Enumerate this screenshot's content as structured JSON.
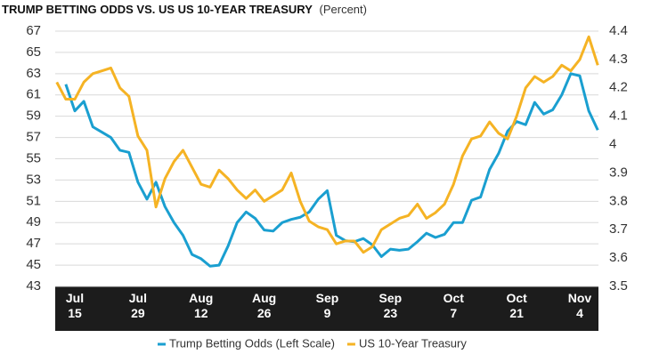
{
  "chart_data": {
    "type": "line",
    "title": "TRUMP BETTING ODDS VS. US US 10-YEAR TREASURY",
    "subtitle": "(Percent)",
    "categories": [
      null,
      null,
      "Jul 15",
      null,
      null,
      null,
      null,
      null,
      null,
      "Jul 29",
      null,
      null,
      null,
      null,
      null,
      null,
      "Aug 12",
      null,
      null,
      null,
      null,
      null,
      null,
      "Aug 26",
      null,
      null,
      null,
      null,
      null,
      null,
      "Sep 9",
      null,
      null,
      null,
      null,
      null,
      null,
      "Sep 23",
      null,
      null,
      null,
      null,
      null,
      null,
      "Oct 7",
      null,
      null,
      null,
      null,
      null,
      null,
      "Oct 21",
      null,
      null,
      null,
      null,
      null,
      null,
      "Nov 4",
      null,
      null
    ],
    "series": [
      {
        "name": "Trump Betting Odds (Left Scale)",
        "color": "#1a9fd0",
        "values": [
          null,
          62.0,
          59.5,
          60.4,
          58.0,
          57.5,
          57.0,
          55.8,
          55.6,
          52.8,
          51.2,
          52.8,
          50.5,
          49.0,
          47.8,
          46.0,
          45.6,
          44.9,
          45.0,
          46.8,
          49.0,
          50.0,
          49.4,
          48.3,
          48.2,
          49.0,
          49.3,
          49.5,
          50.0,
          51.2,
          52.0,
          47.8,
          47.3,
          47.2,
          47.5,
          46.9,
          45.8,
          46.5,
          46.4,
          46.5,
          47.2,
          48.0,
          47.6,
          47.9,
          49.0,
          49.0,
          51.1,
          51.4,
          54.0,
          55.5,
          57.6,
          58.5,
          58.2,
          60.3,
          59.2,
          59.6,
          61.0,
          63.0,
          62.8,
          59.5,
          57.7
        ]
      },
      {
        "name": "US 10-Year Treasury",
        "color": "#f5b324",
        "axis": "y2",
        "values": [
          4.22,
          4.16,
          4.16,
          4.22,
          4.25,
          4.26,
          4.27,
          4.2,
          4.17,
          4.03,
          3.98,
          3.78,
          3.88,
          3.94,
          3.98,
          3.92,
          3.86,
          3.85,
          3.91,
          3.88,
          3.84,
          3.81,
          3.84,
          3.8,
          3.82,
          3.84,
          3.9,
          3.8,
          3.73,
          3.71,
          3.7,
          3.65,
          3.66,
          3.66,
          3.62,
          3.64,
          3.7,
          3.72,
          3.74,
          3.75,
          3.79,
          3.74,
          3.76,
          3.79,
          3.86,
          3.96,
          4.02,
          4.03,
          4.08,
          4.04,
          4.02,
          4.1,
          4.2,
          4.24,
          4.22,
          4.24,
          4.28,
          4.26,
          4.3,
          4.38,
          4.28
        ]
      }
    ],
    "ylim": [
      43,
      67
    ],
    "yticks": [
      43,
      45,
      47,
      49,
      51,
      53,
      55,
      57,
      59,
      61,
      63,
      65,
      67
    ],
    "y2lim": [
      3.5,
      4.4
    ],
    "y2ticks": [
      3.5,
      3.6,
      3.7,
      3.8,
      3.9,
      4.0,
      4.1,
      4.2,
      4.3,
      4.4
    ],
    "grid": true,
    "legend": "bottom"
  }
}
